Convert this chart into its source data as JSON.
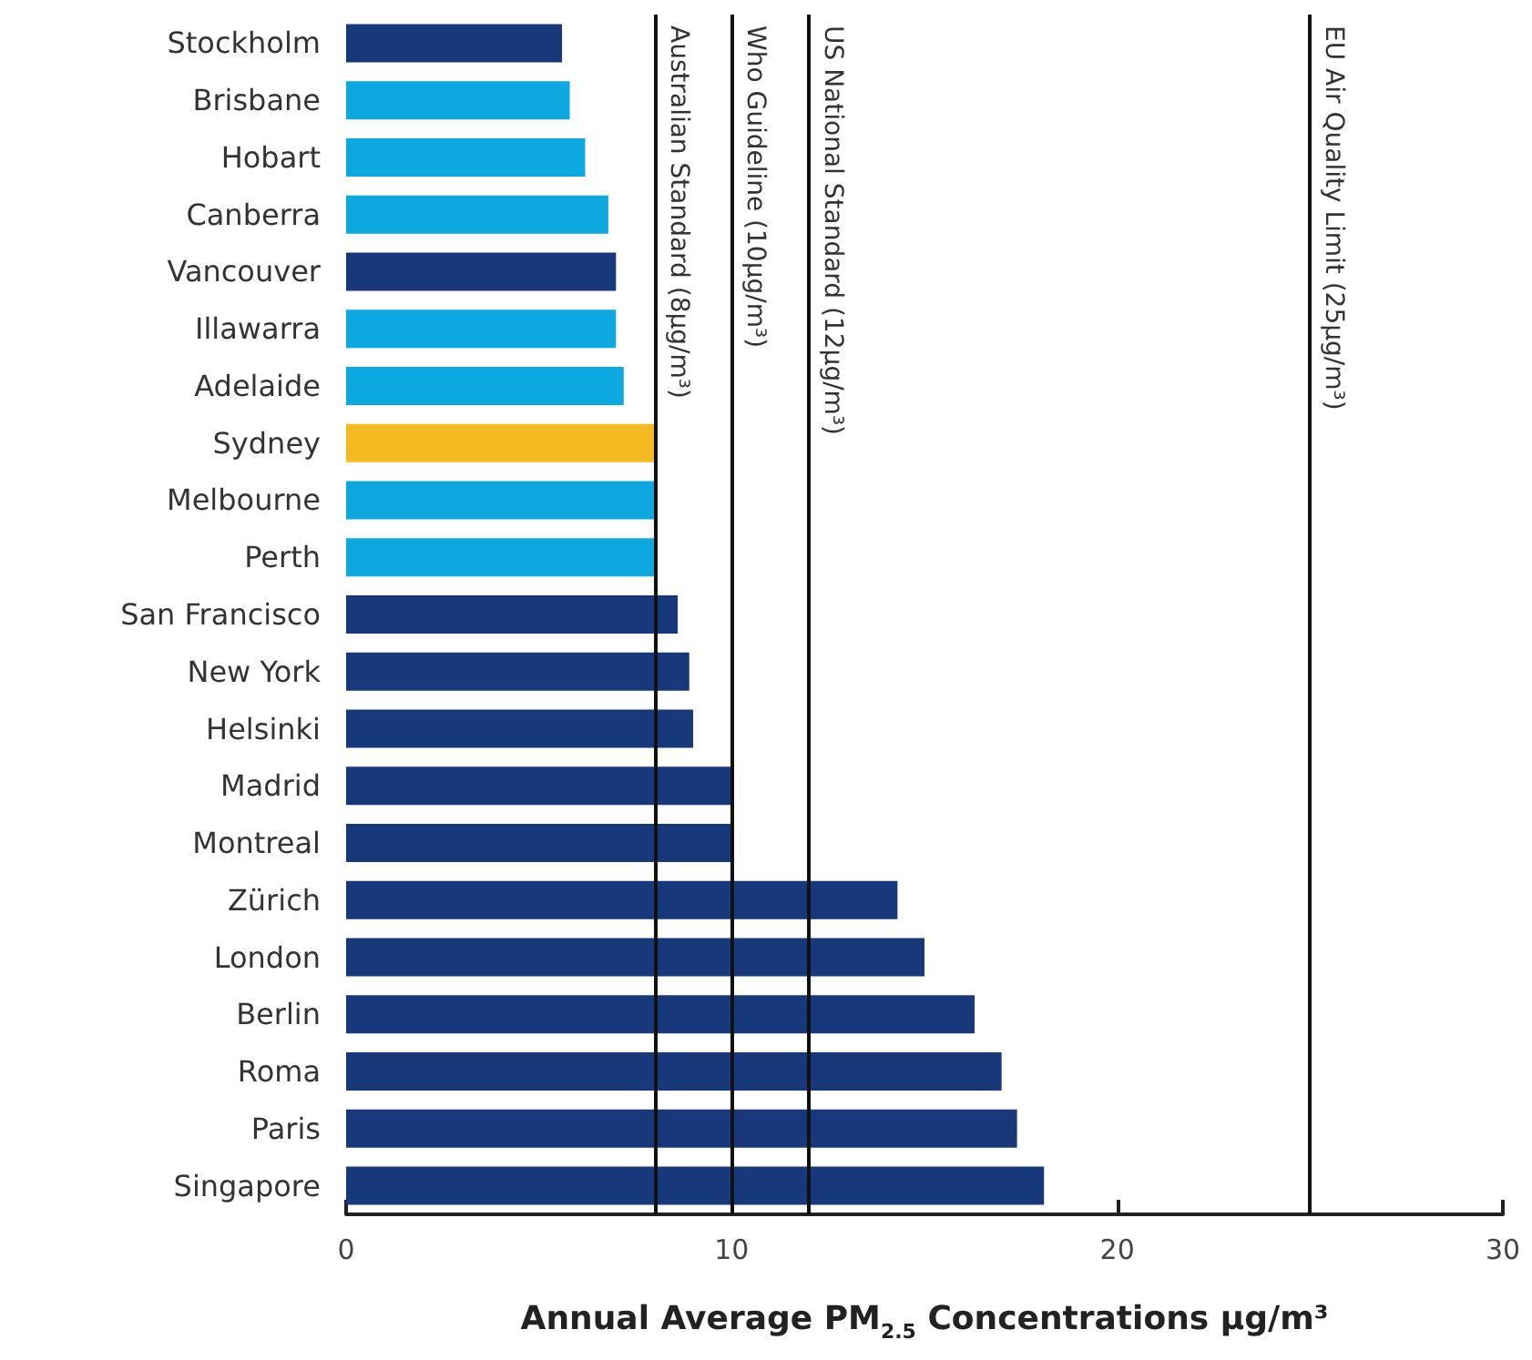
{
  "chart_data": {
    "type": "bar",
    "orientation": "horizontal",
    "xlabel": "Annual Average PM$_{2.5}$ Concentrations µg/m³",
    "categories": [
      "Stockholm",
      "Brisbane",
      "Hobart",
      "Canberra",
      "Vancouver",
      "Illawarra",
      "Adelaide",
      "Sydney",
      "Melbourne",
      "Perth",
      "San Francisco",
      "New York",
      "Helsinki",
      "Madrid",
      "Montreal",
      "Zürich",
      "London",
      "Berlin",
      "Roma",
      "Paris",
      "Singapore"
    ],
    "values": [
      5.6,
      5.8,
      6.2,
      6.8,
      7.0,
      7.0,
      7.2,
      8,
      8,
      8,
      8.6,
      8.9,
      9.0,
      10,
      10,
      14.3,
      15.0,
      16.3,
      17.0,
      17.4,
      18.1
    ],
    "colors": [
      "#17387a",
      "#0ea8e0",
      "#0ea8e0",
      "#0ea8e0",
      "#17387a",
      "#0ea8e0",
      "#0ea8e0",
      "#f5b921",
      "#0ea8e0",
      "#0ea8e0",
      "#17387a",
      "#17387a",
      "#17387a",
      "#17387a",
      "#17387a",
      "#17387a",
      "#17387a",
      "#17387a",
      "#17387a",
      "#17387a",
      "#17387a"
    ],
    "xlim": [
      0,
      30
    ],
    "xticks": [
      0,
      10,
      20,
      30
    ],
    "grid": false,
    "ref_lines": [
      {
        "axis": "x",
        "value": 8,
        "label": "Australian Standard (8µg/m³)",
        "color": "#111111"
      },
      {
        "axis": "x",
        "value": 10,
        "label": "Who Guideline (10µg/m³)",
        "color": "#111111"
      },
      {
        "axis": "x",
        "value": 12,
        "label": "US National Standard (12µg/m³)",
        "color": "#111111"
      },
      {
        "axis": "x",
        "value": 25,
        "label": "EU Air Quality Limit (25µg/m³)",
        "color": "#111111"
      }
    ]
  }
}
